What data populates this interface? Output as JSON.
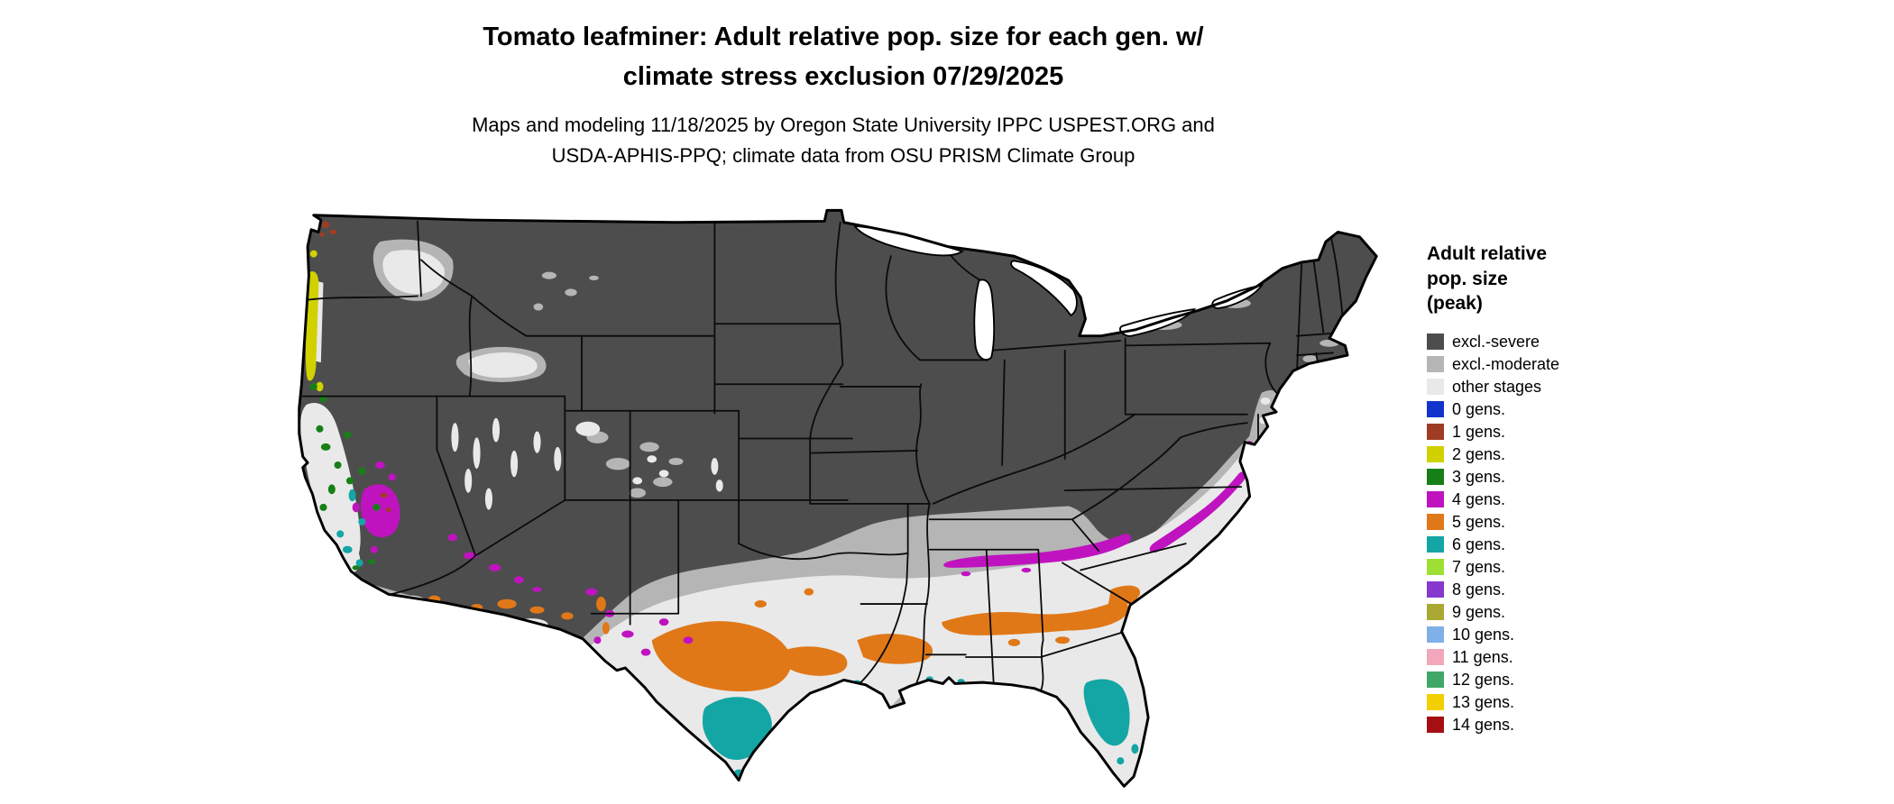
{
  "header": {
    "title_line1": "Tomato leafminer: Adult relative pop. size for each gen. w/",
    "title_line2": "climate stress exclusion 07/29/2025",
    "subtitle_line1": "Maps and modeling 11/18/2025 by Oregon State University IPPC USPEST.ORG and",
    "subtitle_line2": "USDA-APHIS-PPQ; climate data from OSU PRISM Climate Group"
  },
  "legend": {
    "title_lines": [
      "Adult relative",
      "pop. size",
      "(peak)"
    ],
    "items": [
      {
        "label": "excl.-severe",
        "color": "#4d4d4d",
        "key": "severe"
      },
      {
        "label": "excl.-moderate",
        "color": "#b5b5b5",
        "key": "moderate"
      },
      {
        "label": "other stages",
        "color": "#e9e9e9",
        "key": "other"
      },
      {
        "label": "0 gens.",
        "color": "#1034cc",
        "key": "g0"
      },
      {
        "label": "1 gens.",
        "color": "#9e3d23",
        "key": "g1"
      },
      {
        "label": "2 gens.",
        "color": "#d1d100",
        "key": "g2"
      },
      {
        "label": "3 gens.",
        "color": "#168016",
        "key": "g3"
      },
      {
        "label": "4 gens.",
        "color": "#c013c0",
        "key": "g4"
      },
      {
        "label": "5 gens.",
        "color": "#e07818",
        "key": "g5"
      },
      {
        "label": "6 gens.",
        "color": "#14a5a5",
        "key": "g6"
      },
      {
        "label": "7 gens.",
        "color": "#9ddf33",
        "key": "g7"
      },
      {
        "label": "8 gens.",
        "color": "#8638cf",
        "key": "g8"
      },
      {
        "label": "9 gens.",
        "color": "#a8a832",
        "key": "g9"
      },
      {
        "label": "10 gens.",
        "color": "#7fb0e8",
        "key": "g10"
      },
      {
        "label": "11 gens.",
        "color": "#f2a7bb",
        "key": "g11"
      },
      {
        "label": "12 gens.",
        "color": "#3fa868",
        "key": "g12"
      },
      {
        "label": "13 gens.",
        "color": "#f2cf00",
        "key": "g13"
      },
      {
        "label": "14 gens.",
        "color": "#a50f14",
        "key": "g14"
      }
    ]
  }
}
